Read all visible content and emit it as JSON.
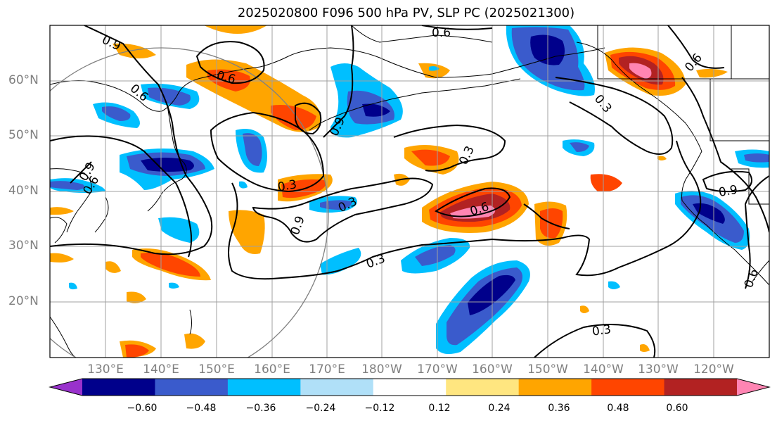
{
  "title": "2025020800 F096 500 hPa PV, SLP PC (2025021300)",
  "lat_labels": [
    "60°N",
    "50°N",
    "40°N",
    "30°N",
    "20°N"
  ],
  "lon_labels": [
    "130°E",
    "140°E",
    "150°E",
    "160°E",
    "170°E",
    "180°W",
    "170°W",
    "160°W",
    "150°W",
    "140°W",
    "130°W",
    "120°W"
  ],
  "colorbar": {
    "ticks": [
      "−0.60",
      "−0.48",
      "−0.36",
      "−0.24",
      "−0.12",
      "0.12",
      "0.24",
      "0.36",
      "0.48",
      "0.60"
    ],
    "colors": [
      "#9932cc",
      "#00008b",
      "#3a5bcc",
      "#00bfff",
      "#b0e0f8",
      "#ffffff",
      "#ffe680",
      "#ffa500",
      "#ff4500",
      "#b22222",
      "#ff85b3"
    ]
  },
  "contour_labels": [
    "0.9",
    "0.6",
    "0.6",
    "0.6",
    "0.3",
    "0.9",
    "0.3",
    "0.3",
    "0.6",
    "0.9",
    "0.3",
    "0.3",
    "0.6",
    "0.3",
    "0.9",
    "0.6",
    "0.9",
    "0.6",
    "0.3",
    "0.3"
  ]
}
